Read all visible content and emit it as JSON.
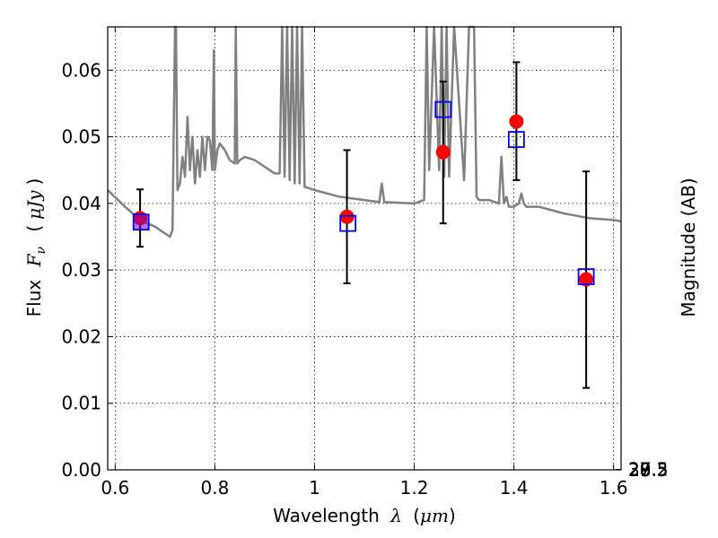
{
  "chart_data": {
    "type": "scatter",
    "xlabel": {
      "prefix": "Wavelength",
      "symbol": "λ",
      "unit_open": "(",
      "unit": "μm",
      "unit_close": ")"
    },
    "ylabel": {
      "prefix": "Flux",
      "symbol": "F",
      "subscript": "ν",
      "unit_open": "(",
      "unit": "μJy",
      "unit_close": ")"
    },
    "y2label": "Magnitude (AB)",
    "xlim": [
      0.585,
      1.615
    ],
    "ylim": [
      0.0,
      0.0665
    ],
    "xticks": [
      0.6,
      0.8,
      1.0,
      1.2,
      1.4,
      1.6
    ],
    "xtick_labels": [
      "0.6",
      "0.8",
      "1",
      "1.2",
      "1.4",
      "1.6"
    ],
    "yticks": [
      0.0,
      0.01,
      0.02,
      0.03,
      0.04,
      0.05,
      0.06
    ],
    "ytick_labels": [
      "0.00",
      "0.01",
      "0.02",
      "0.03",
      "0.04",
      "0.05",
      "0.06"
    ],
    "y2ticks": [
      27,
      27.2,
      27.5,
      28,
      28.5,
      29,
      30
    ],
    "y2tick_labels": [
      "27",
      "27.2",
      "27.5",
      "28",
      "28.5",
      "29",
      "30"
    ],
    "grid": true,
    "colors": {
      "observed": "#ff0000",
      "model": "#0000ff",
      "template": "#808080",
      "errorbar": "#000000"
    },
    "observed": {
      "x": [
        0.65,
        1.065,
        1.258,
        1.405,
        1.545
      ],
      "y": [
        0.0378,
        0.038,
        0.0477,
        0.0523,
        0.0286
      ],
      "yerr_low": [
        0.0335,
        0.028,
        0.037,
        0.0435,
        0.0123
      ],
      "yerr_high": [
        0.0421,
        0.048,
        0.0583,
        0.0612,
        0.0448
      ]
    },
    "model": {
      "x": [
        0.652,
        1.067,
        1.258,
        1.405,
        1.545
      ],
      "y": [
        0.0372,
        0.037,
        0.0541,
        0.0496,
        0.029
      ]
    },
    "template": {
      "x": [
        0.585,
        0.62,
        0.65,
        0.68,
        0.7,
        0.71,
        0.715,
        0.72,
        0.722,
        0.725,
        0.73,
        0.735,
        0.74,
        0.745,
        0.75,
        0.755,
        0.76,
        0.765,
        0.77,
        0.775,
        0.78,
        0.785,
        0.79,
        0.795,
        0.798,
        0.8,
        0.805,
        0.81,
        0.82,
        0.83,
        0.84,
        0.842,
        0.845,
        0.85,
        0.86,
        0.88,
        0.9,
        0.92,
        0.93,
        0.935,
        0.94,
        0.945,
        0.95,
        0.955,
        0.96,
        0.965,
        0.97,
        0.975,
        0.98,
        1.0,
        1.05,
        1.1,
        1.13,
        1.135,
        1.14,
        1.2,
        1.22,
        1.225,
        1.23,
        1.24,
        1.25,
        1.255,
        1.26,
        1.265,
        1.27,
        1.28,
        1.3,
        1.31,
        1.32,
        1.325,
        1.33,
        1.35,
        1.37,
        1.375,
        1.38,
        1.385,
        1.39,
        1.4,
        1.41,
        1.415,
        1.42,
        1.425,
        1.43,
        1.45,
        1.5,
        1.55,
        1.6,
        1.615
      ],
      "y": [
        0.042,
        0.0395,
        0.0375,
        0.0365,
        0.0355,
        0.035,
        0.036,
        0.068,
        0.068,
        0.042,
        0.043,
        0.047,
        0.044,
        0.053,
        0.045,
        0.05,
        0.043,
        0.048,
        0.044,
        0.05,
        0.045,
        0.05,
        0.0495,
        0.045,
        0.063,
        0.045,
        0.048,
        0.049,
        0.048,
        0.0465,
        0.046,
        0.068,
        0.046,
        0.0465,
        0.047,
        0.0465,
        0.0455,
        0.0445,
        0.0445,
        0.068,
        0.044,
        0.068,
        0.0435,
        0.068,
        0.043,
        0.068,
        0.043,
        0.068,
        0.0425,
        0.042,
        0.041,
        0.0405,
        0.0402,
        0.043,
        0.0402,
        0.04,
        0.0405,
        0.068,
        0.045,
        0.068,
        0.045,
        0.068,
        0.044,
        0.068,
        0.044,
        0.068,
        0.0435,
        0.068,
        0.068,
        0.041,
        0.0405,
        0.0405,
        0.04,
        0.047,
        0.04,
        0.041,
        0.0395,
        0.0395,
        0.04,
        0.0415,
        0.04,
        0.0395,
        0.0395,
        0.0395,
        0.0385,
        0.0378,
        0.0375,
        0.0373
      ]
    }
  }
}
